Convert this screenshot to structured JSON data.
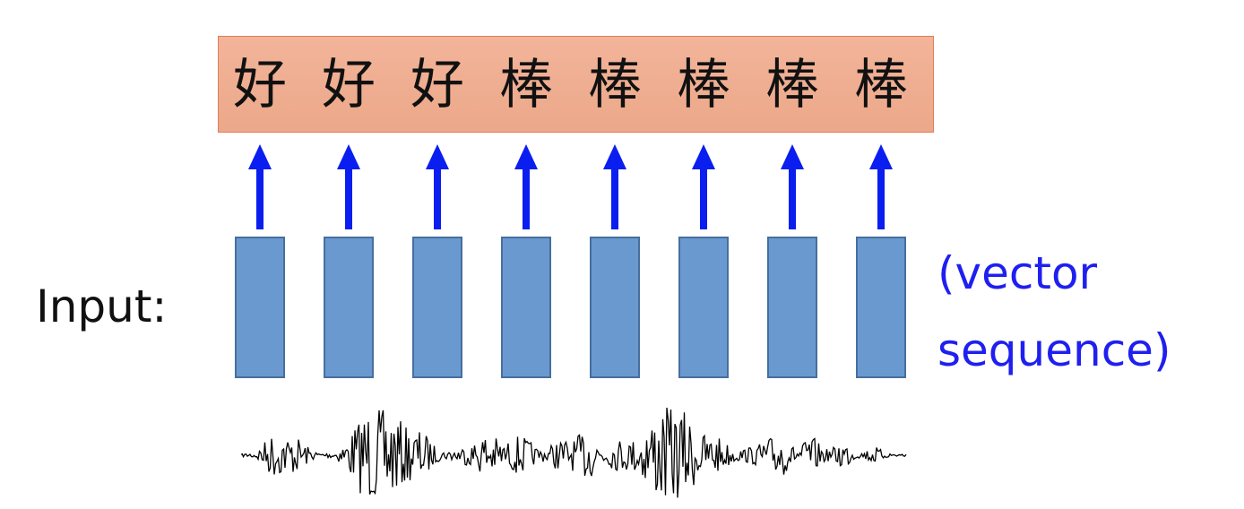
{
  "output_tokens": [
    "好",
    "好",
    "好",
    "棒",
    "棒",
    "棒",
    "棒",
    "棒"
  ],
  "input_label": "Input:",
  "vector_label": {
    "line1": "(vector",
    "line2": "sequence)"
  },
  "colors": {
    "output_fill": "#f0b196",
    "output_border": "#e07d56",
    "vector_fill": "#6a99d0",
    "vector_border": "#456f9f",
    "arrow": "#0a1ef0",
    "label_blue": "#1f1ff0",
    "waveform": "#000000"
  },
  "icons": {
    "arrow": "arrow-up-icon",
    "audio": "audio-waveform-icon"
  }
}
